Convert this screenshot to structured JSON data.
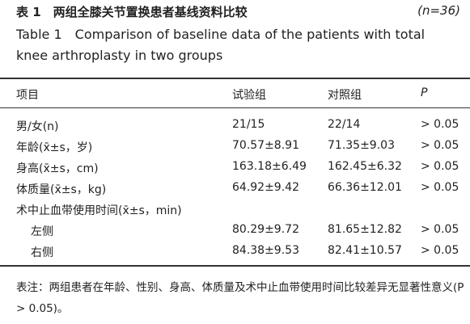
{
  "header": {
    "title_cn": "表 1　两组全膝关节置换患者基线资料比较",
    "sample_size": "(n=36)",
    "title_en": "Table 1　Comparison of baseline data of the patients with total knee arthroplasty in two groups"
  },
  "table": {
    "columns": [
      "项目",
      "试验组",
      "对照组",
      "P"
    ],
    "rows": [
      [
        "男/女(n)",
        "21/15",
        "22/14",
        "> 0.05"
      ],
      [
        "年龄(x̄±s，岁)",
        "70.57±8.91",
        "71.35±9.03",
        "> 0.05"
      ],
      [
        "身高(x̄±s，cm)",
        "163.18±6.49",
        "162.45±6.32",
        "> 0.05"
      ],
      [
        "体质量(x̄±s，kg)",
        "64.92±9.42",
        "66.36±12.01",
        "> 0.05"
      ],
      [
        "术中止血带使用时间(x̄±s，min)"
      ],
      [
        "左侧",
        "80.29±9.72",
        "81.65±12.82",
        "> 0.05"
      ],
      [
        "右侧",
        "84.38±9.53",
        "82.41±10.57",
        "> 0.05"
      ]
    ]
  },
  "footer": {
    "note": "表注：两组患者在年龄、性别、身高、体质量及术中止血带使用时间比较差异无显著性意义(P > 0.05)。"
  }
}
